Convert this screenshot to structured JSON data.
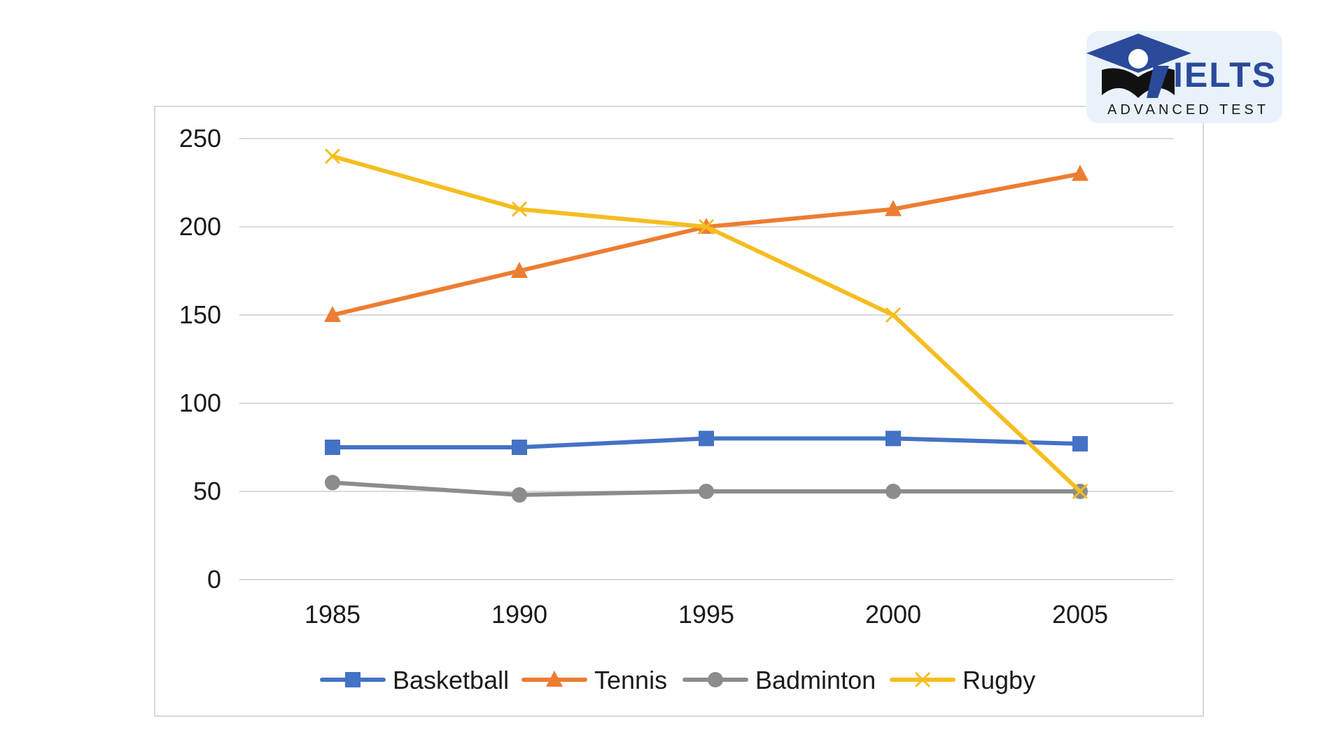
{
  "chart_data": {
    "type": "line",
    "title": "",
    "xlabel": "",
    "ylabel": "",
    "x": [
      "1985",
      "1990",
      "1995",
      "2000",
      "2005"
    ],
    "ylim": [
      0,
      250
    ],
    "yticks": [
      0,
      50,
      100,
      150,
      200,
      250
    ],
    "grid": true,
    "legend_position": "bottom",
    "series": [
      {
        "name": "Basketball",
        "values": [
          75,
          75,
          80,
          80,
          77
        ],
        "color": "#4472c4",
        "marker": "square"
      },
      {
        "name": "Tennis",
        "values": [
          150,
          175,
          200,
          210,
          230
        ],
        "color": "#ed7d31",
        "marker": "triangle"
      },
      {
        "name": "Badminton",
        "values": [
          55,
          48,
          50,
          50,
          50
        ],
        "color": "#8c8c8c",
        "marker": "circle"
      },
      {
        "name": "Rugby",
        "values": [
          240,
          210,
          200,
          150,
          50
        ],
        "color": "#f5bd1f",
        "marker": "x"
      }
    ]
  },
  "logo": {
    "name": "IELTS",
    "subtitle": "ADVANCED TEST",
    "color": "#2b4a9b"
  }
}
